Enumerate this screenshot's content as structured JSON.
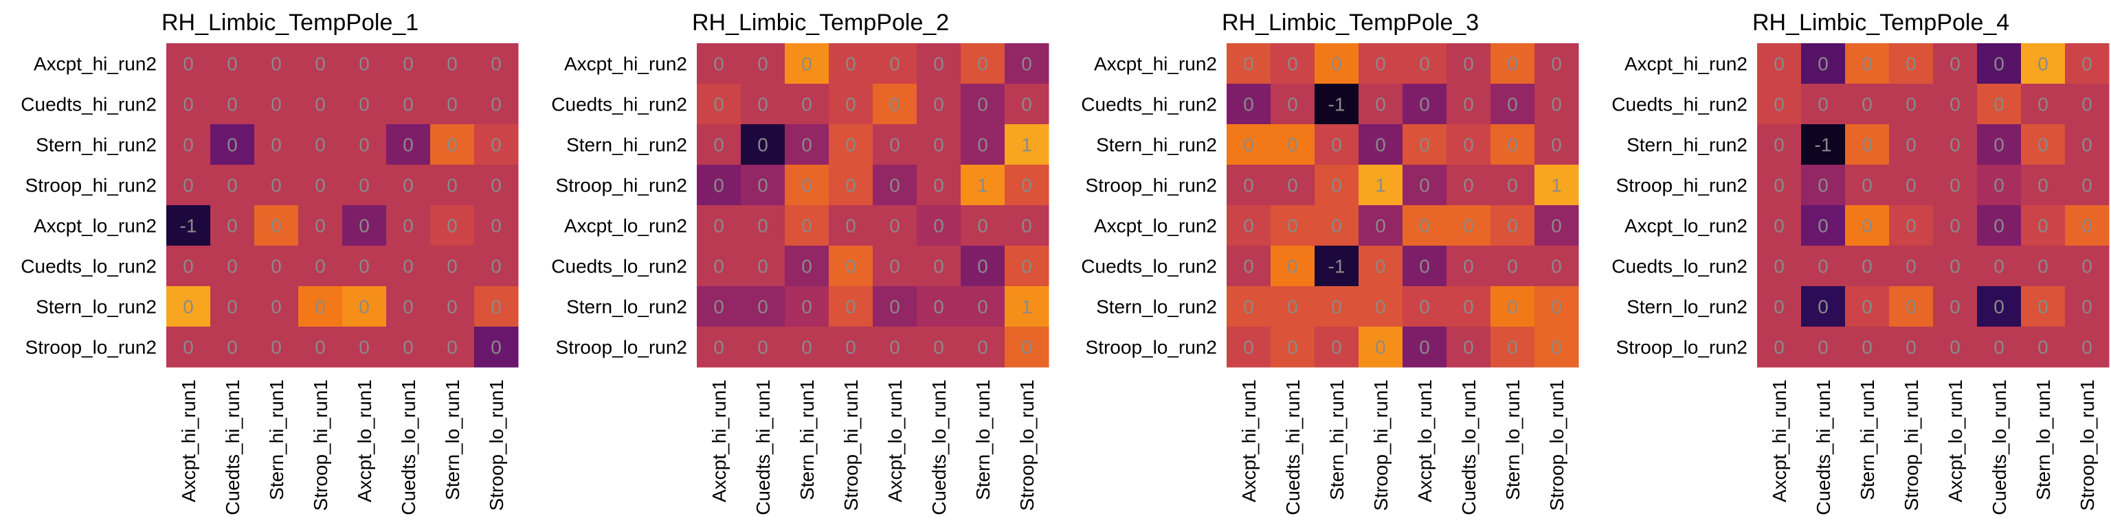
{
  "chart_data": [
    {
      "type": "heatmap",
      "title": "RH_Limbic_TempPole_1",
      "xlabels": [
        "Axcpt_hi_run1",
        "Cuedts_hi_run1",
        "Stern_hi_run1",
        "Stroop_hi_run1",
        "Axcpt_lo_run1",
        "Cuedts_lo_run1",
        "Stern_lo_run1",
        "Stroop_lo_run1"
      ],
      "ylabels": [
        "Axcpt_hi_run2",
        "Cuedts_hi_run2",
        "Stern_hi_run2",
        "Stroop_hi_run2",
        "Axcpt_lo_run2",
        "Cuedts_lo_run2",
        "Stern_lo_run2",
        "Stroop_lo_run2"
      ],
      "values": [
        [
          0.0,
          0.0,
          0.0,
          0.0,
          0.0,
          0.0,
          0.0,
          0.0
        ],
        [
          0.0,
          0.0,
          0.0,
          0.0,
          0.0,
          0.0,
          0.0,
          0.0
        ],
        [
          0.0,
          -0.4,
          0.0,
          0.0,
          0.0,
          -0.3,
          0.3,
          0.1
        ],
        [
          0.0,
          0.0,
          0.0,
          0.0,
          0.0,
          0.0,
          0.0,
          0.0
        ],
        [
          -0.8,
          0.0,
          0.3,
          0.0,
          -0.3,
          0.0,
          0.1,
          0.0
        ],
        [
          0.0,
          0.0,
          0.0,
          0.0,
          0.0,
          0.0,
          0.0,
          0.0
        ],
        [
          0.6,
          0.0,
          0.0,
          0.4,
          0.5,
          0.0,
          0.0,
          0.2
        ],
        [
          0.0,
          0.0,
          0.0,
          0.0,
          0.0,
          0.0,
          0.0,
          -0.4
        ]
      ],
      "labels": [
        [
          "0",
          "0",
          "0",
          "0",
          "0",
          "0",
          "0",
          "0"
        ],
        [
          "0",
          "0",
          "0",
          "0",
          "0",
          "0",
          "0",
          "0"
        ],
        [
          "0",
          "0",
          "0",
          "0",
          "0",
          "0",
          "0",
          "0"
        ],
        [
          "0",
          "0",
          "0",
          "0",
          "0",
          "0",
          "0",
          "0"
        ],
        [
          "-1",
          "0",
          "0",
          "0",
          "0",
          "0",
          "0",
          "0"
        ],
        [
          "0",
          "0",
          "0",
          "0",
          "0",
          "0",
          "0",
          "0"
        ],
        [
          "0",
          "0",
          "0",
          "0",
          "0",
          "0",
          "0",
          "0"
        ],
        [
          "0",
          "0",
          "0",
          "0",
          "0",
          "0",
          "0",
          "0"
        ]
      ]
    },
    {
      "type": "heatmap",
      "title": "RH_Limbic_TempPole_2",
      "xlabels": [
        "Axcpt_hi_run1",
        "Cuedts_hi_run1",
        "Stern_hi_run1",
        "Stroop_hi_run1",
        "Axcpt_lo_run1",
        "Cuedts_lo_run1",
        "Stern_lo_run1",
        "Stroop_lo_run1"
      ],
      "ylabels": [
        "Axcpt_hi_run2",
        "Cuedts_hi_run2",
        "Stern_hi_run2",
        "Stroop_hi_run2",
        "Axcpt_lo_run2",
        "Cuedts_lo_run2",
        "Stern_lo_run2",
        "Stroop_lo_run2"
      ],
      "values": [
        [
          0.0,
          0.0,
          0.5,
          0.1,
          0.1,
          0.0,
          0.2,
          -0.2
        ],
        [
          0.1,
          0.0,
          0.0,
          0.1,
          0.3,
          0.0,
          -0.2,
          0.0
        ],
        [
          0.0,
          -0.8,
          -0.2,
          0.2,
          0.0,
          0.0,
          -0.2,
          0.6
        ],
        [
          -0.3,
          -0.2,
          0.3,
          0.2,
          -0.2,
          0.0,
          0.5,
          0.2
        ],
        [
          0.0,
          0.0,
          0.2,
          0.0,
          0.0,
          -0.1,
          0.0,
          0.0
        ],
        [
          0.0,
          0.0,
          -0.2,
          0.3,
          0.0,
          0.0,
          -0.3,
          0.2
        ],
        [
          -0.2,
          -0.2,
          -0.1,
          0.2,
          -0.2,
          -0.1,
          -0.1,
          0.5
        ],
        [
          0.0,
          0.0,
          0.0,
          0.0,
          0.0,
          0.0,
          0.0,
          0.3
        ]
      ],
      "labels": [
        [
          "0",
          "0",
          "0",
          "0",
          "0",
          "0",
          "0",
          "0"
        ],
        [
          "0",
          "0",
          "0",
          "0",
          "0",
          "0",
          "0",
          "0"
        ],
        [
          "0",
          "0",
          "0",
          "0",
          "0",
          "0",
          "0",
          "1"
        ],
        [
          "0",
          "0",
          "0",
          "0",
          "0",
          "0",
          "1",
          "0"
        ],
        [
          "0",
          "0",
          "0",
          "0",
          "0",
          "0",
          "0",
          "0"
        ],
        [
          "0",
          "0",
          "0",
          "0",
          "0",
          "0",
          "0",
          "0"
        ],
        [
          "0",
          "0",
          "0",
          "0",
          "0",
          "0",
          "0",
          "1"
        ],
        [
          "0",
          "0",
          "0",
          "0",
          "0",
          "0",
          "0",
          "0"
        ]
      ]
    },
    {
      "type": "heatmap",
      "title": "RH_Limbic_TempPole_3",
      "xlabels": [
        "Axcpt_hi_run1",
        "Cuedts_hi_run1",
        "Stern_hi_run1",
        "Stroop_hi_run1",
        "Axcpt_lo_run1",
        "Cuedts_lo_run1",
        "Stern_lo_run1",
        "Stroop_lo_run1"
      ],
      "ylabels": [
        "Axcpt_hi_run2",
        "Cuedts_hi_run2",
        "Stern_hi_run2",
        "Stroop_hi_run2",
        "Axcpt_lo_run2",
        "Cuedts_lo_run2",
        "Stern_lo_run2",
        "Stroop_lo_run2"
      ],
      "values": [
        [
          0.2,
          0.1,
          0.4,
          0.1,
          0.1,
          0.0,
          0.3,
          0.0
        ],
        [
          -0.3,
          0.0,
          -0.9,
          0.0,
          -0.3,
          0.0,
          -0.2,
          0.0
        ],
        [
          0.4,
          0.4,
          0.1,
          -0.3,
          0.2,
          0.1,
          0.3,
          0.0
        ],
        [
          0.0,
          0.0,
          0.2,
          0.6,
          -0.2,
          0.0,
          0.0,
          0.6
        ],
        [
          0.1,
          0.2,
          0.2,
          -0.2,
          0.3,
          0.3,
          0.2,
          -0.2
        ],
        [
          0.0,
          0.4,
          -0.8,
          0.2,
          -0.3,
          0.0,
          0.0,
          0.0
        ],
        [
          0.2,
          0.2,
          0.2,
          0.2,
          0.1,
          0.1,
          0.4,
          0.3
        ],
        [
          0.1,
          0.2,
          0.1,
          0.5,
          -0.3,
          0.0,
          0.2,
          0.3
        ]
      ],
      "labels": [
        [
          "0",
          "0",
          "0",
          "0",
          "0",
          "0",
          "0",
          "0"
        ],
        [
          "0",
          "0",
          "-1",
          "0",
          "0",
          "0",
          "0",
          "0"
        ],
        [
          "0",
          "0",
          "0",
          "0",
          "0",
          "0",
          "0",
          "0"
        ],
        [
          "0",
          "0",
          "0",
          "1",
          "0",
          "0",
          "0",
          "1"
        ],
        [
          "0",
          "0",
          "0",
          "0",
          "0",
          "0",
          "0",
          "0"
        ],
        [
          "0",
          "0",
          "-1",
          "0",
          "0",
          "0",
          "0",
          "0"
        ],
        [
          "0",
          "0",
          "0",
          "0",
          "0",
          "0",
          "0",
          "0"
        ],
        [
          "0",
          "0",
          "0",
          "0",
          "0",
          "0",
          "0",
          "0"
        ]
      ]
    },
    {
      "type": "heatmap",
      "title": "RH_Limbic_TempPole_4",
      "xlabels": [
        "Axcpt_hi_run1",
        "Cuedts_hi_run1",
        "Stern_hi_run1",
        "Stroop_hi_run1",
        "Axcpt_lo_run1",
        "Cuedts_lo_run1",
        "Stern_lo_run1",
        "Stroop_lo_run1"
      ],
      "ylabels": [
        "Axcpt_hi_run2",
        "Cuedts_hi_run2",
        "Stern_hi_run2",
        "Stroop_hi_run2",
        "Axcpt_lo_run2",
        "Cuedts_lo_run2",
        "Stern_lo_run2",
        "Stroop_lo_run2"
      ],
      "values": [
        [
          0.1,
          -0.5,
          0.3,
          0.2,
          0.0,
          -0.5,
          0.6,
          0.1
        ],
        [
          0.1,
          0.0,
          0.0,
          0.0,
          0.0,
          0.2,
          0.0,
          0.0
        ],
        [
          0.0,
          -0.9,
          0.3,
          0.0,
          0.0,
          -0.3,
          0.2,
          0.0
        ],
        [
          0.0,
          -0.2,
          0.0,
          0.0,
          0.0,
          -0.1,
          0.0,
          0.0
        ],
        [
          0.0,
          -0.4,
          0.4,
          0.1,
          0.0,
          -0.3,
          0.1,
          0.3
        ],
        [
          0.0,
          0.0,
          0.0,
          0.0,
          0.0,
          0.0,
          0.0,
          0.0
        ],
        [
          0.0,
          -0.7,
          0.1,
          0.3,
          0.0,
          -0.7,
          0.2,
          0.0
        ],
        [
          0.0,
          0.0,
          0.0,
          0.0,
          0.0,
          0.0,
          0.0,
          0.0
        ]
      ],
      "labels": [
        [
          "0",
          "0",
          "0",
          "0",
          "0",
          "0",
          "0",
          "0"
        ],
        [
          "0",
          "0",
          "0",
          "0",
          "0",
          "0",
          "0",
          "0"
        ],
        [
          "0",
          "-1",
          "0",
          "0",
          "0",
          "0",
          "0",
          "0"
        ],
        [
          "0",
          "0",
          "0",
          "0",
          "0",
          "0",
          "0",
          "0"
        ],
        [
          "0",
          "0",
          "0",
          "0",
          "0",
          "0",
          "0",
          "0"
        ],
        [
          "0",
          "0",
          "0",
          "0",
          "0",
          "0",
          "0",
          "0"
        ],
        [
          "0",
          "0",
          "0",
          "0",
          "0",
          "0",
          "0",
          "0"
        ],
        [
          "0",
          "0",
          "0",
          "0",
          "0",
          "0",
          "0",
          "0"
        ]
      ]
    }
  ],
  "colormap": "inferno"
}
